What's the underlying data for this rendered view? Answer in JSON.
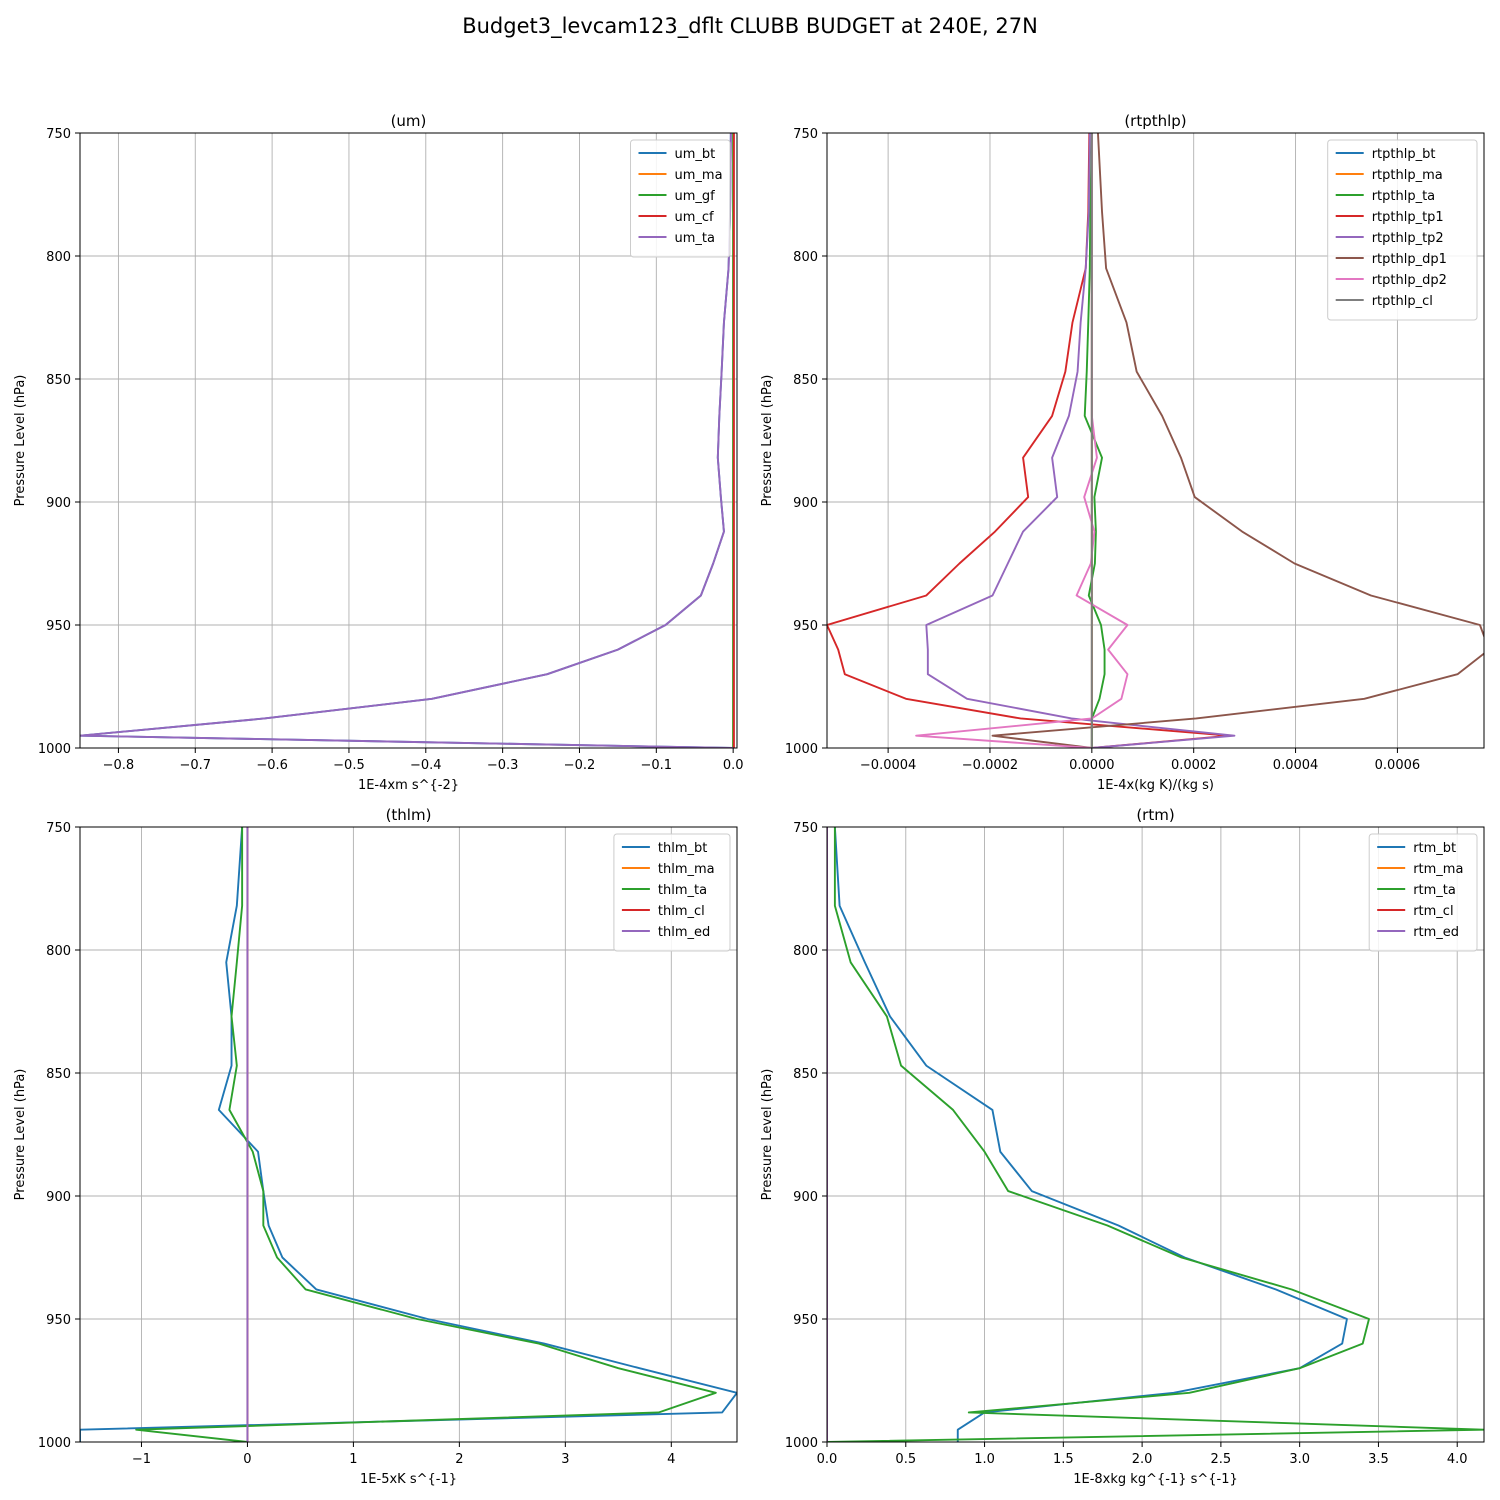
{
  "figure": {
    "title": "Budget3_levcam123_dflt CLUBB BUDGET at 240E, 27N"
  },
  "chart_data": [
    {
      "type": "line",
      "title": "(um)",
      "xlabel": "1E-4xm s^{-2}",
      "ylabel": "Pressure Level (hPa)",
      "xlim": [
        -0.85,
        0.005
      ],
      "ylim": [
        1000,
        750
      ],
      "y_inverted": true,
      "grid": true,
      "legend": "top-right",
      "xticks": [
        -0.8,
        -0.7,
        -0.6,
        -0.5,
        -0.4,
        -0.3,
        -0.2,
        -0.1,
        0.0
      ],
      "xtick_labels": [
        "−0.8",
        "−0.7",
        "−0.6",
        "−0.5",
        "−0.4",
        "−0.3",
        "−0.2",
        "−0.1",
        "0.0"
      ],
      "yticks": [
        750,
        800,
        850,
        900,
        950,
        1000
      ],
      "ytick_labels": [
        "750",
        "800",
        "850",
        "900",
        "950",
        "1000"
      ],
      "levels": [
        750,
        782,
        805,
        827,
        847,
        865,
        882,
        898,
        912,
        925,
        938,
        950,
        960,
        970,
        980,
        988,
        995,
        1000
      ],
      "series": [
        {
          "name": "um_bt",
          "color": "#1f77b4",
          "values": [
            -0.003,
            -0.004,
            -0.006,
            -0.012,
            -0.015,
            -0.018,
            -0.02,
            -0.016,
            -0.012,
            -0.026,
            -0.042,
            -0.088,
            -0.15,
            -0.242,
            -0.392,
            -0.61,
            -0.85,
            0.0
          ]
        },
        {
          "name": "um_ma",
          "color": "#ff7f0e",
          "values": [
            0,
            0,
            0,
            0,
            0,
            0,
            0,
            0,
            0,
            0,
            0,
            0,
            0,
            0,
            0,
            0,
            0,
            0
          ]
        },
        {
          "name": "um_gf",
          "color": "#2ca02c",
          "values": [
            0,
            0,
            0,
            0,
            0,
            0,
            0,
            0,
            0,
            0,
            0,
            0,
            0,
            0,
            0,
            0,
            0,
            0
          ]
        },
        {
          "name": "um_cf",
          "color": "#d62728",
          "values": [
            0.001,
            0.001,
            0.001,
            0.001,
            0.001,
            0.001,
            0.001,
            0.001,
            0.001,
            0.001,
            0.001,
            0.001,
            0.001,
            0.001,
            0.001,
            0.001,
            0.001,
            0.001
          ]
        },
        {
          "name": "um_ta",
          "color": "#9467bd",
          "values": [
            -0.003,
            -0.004,
            -0.006,
            -0.012,
            -0.015,
            -0.018,
            -0.02,
            -0.016,
            -0.012,
            -0.026,
            -0.042,
            -0.088,
            -0.15,
            -0.242,
            -0.392,
            -0.61,
            -0.85,
            0.0
          ]
        }
      ]
    },
    {
      "type": "line",
      "title": "(rtpthlp)",
      "xlabel": "1E-4x(kg K)/(kg s)",
      "ylabel": "Pressure Level (hPa)",
      "xlim": [
        -0.00052,
        0.00077
      ],
      "ylim": [
        1000,
        750
      ],
      "y_inverted": true,
      "grid": true,
      "legend": "top-right",
      "xticks": [
        -0.0004,
        -0.0002,
        0.0,
        0.0002,
        0.0004,
        0.0006
      ],
      "xtick_labels": [
        "−0.0004",
        "−0.0002",
        "0.0000",
        "0.0002",
        "0.0004",
        "0.0006"
      ],
      "yticks": [
        750,
        800,
        850,
        900,
        950,
        1000
      ],
      "ytick_labels": [
        "750",
        "800",
        "850",
        "900",
        "950",
        "1000"
      ],
      "levels": [
        750,
        782,
        805,
        827,
        847,
        865,
        882,
        898,
        912,
        925,
        938,
        950,
        960,
        970,
        980,
        988,
        995,
        1000
      ],
      "series": [
        {
          "name": "rtpthlp_bt",
          "color": "#1f77b4",
          "values": [
            0,
            0,
            0,
            0,
            0,
            0,
            0,
            0,
            0,
            0,
            0,
            0,
            0,
            0,
            0,
            0,
            0,
            0
          ]
        },
        {
          "name": "rtpthlp_ma",
          "color": "#ff7f0e",
          "values": [
            0,
            0,
            0,
            0,
            0,
            0,
            0,
            0,
            0,
            0,
            0,
            0,
            0,
            0,
            0,
            0,
            0,
            0
          ]
        },
        {
          "name": "rtpthlp_ta",
          "color": "#2ca02c",
          "values": [
            0.0,
            -3e-06,
            -4e-06,
            -7e-06,
            -1e-05,
            -1.4e-05,
            2e-05,
            5e-06,
            8e-06,
            6e-06,
            -6e-06,
            1.8e-05,
            2.5e-05,
            2.5e-05,
            1.5e-05,
            0.0,
            0.0,
            0.0
          ]
        },
        {
          "name": "rtpthlp_tp1",
          "color": "#d62728",
          "values": [
            -5e-06,
            -7e-06,
            -1.2e-05,
            -3.8e-05,
            -5.2e-05,
            -7.8e-05,
            -0.000135,
            -0.000125,
            -0.00019,
            -0.00026,
            -0.000325,
            -0.00052,
            -0.000498,
            -0.000485,
            -0.000365,
            -0.00014,
            0.00027,
            0.0
          ]
        },
        {
          "name": "rtpthlp_tp2",
          "color": "#9467bd",
          "values": [
            -4e-06,
            -6e-06,
            -1.2e-05,
            -2.2e-05,
            -2.8e-05,
            -4.5e-05,
            -7.8e-05,
            -6.8e-05,
            -0.000135,
            -0.000165,
            -0.000195,
            -0.000325,
            -0.000322,
            -0.000322,
            -0.000245,
            -4e-05,
            0.00028,
            0.0
          ]
        },
        {
          "name": "rtpthlp_dp1",
          "color": "#8c564b",
          "values": [
            1.2e-05,
            2e-05,
            2.8e-05,
            6.8e-05,
            8.8e-05,
            0.000138,
            0.000175,
            0.000202,
            0.000295,
            0.000398,
            0.000548,
            0.000762,
            0.00078,
            0.000718,
            0.000535,
            0.000205,
            -0.000195,
            0.0
          ]
        },
        {
          "name": "rtpthlp_dp2",
          "color": "#e377c2",
          "values": [
            0.0,
            0.0,
            0.0,
            0.0,
            0.0,
            0.0,
            1e-05,
            -1.5e-05,
            5e-06,
            -2e-06,
            -3e-05,
            7e-05,
            3.2e-05,
            7e-05,
            5.8e-05,
            0.0,
            -0.000345,
            0.0
          ]
        },
        {
          "name": "rtpthlp_cl",
          "color": "#7f7f7f",
          "values": [
            0,
            0,
            0,
            0,
            0,
            0,
            0,
            0,
            0,
            0,
            0,
            0,
            0,
            0,
            0,
            0,
            0,
            0
          ]
        }
      ]
    },
    {
      "type": "line",
      "title": "(thlm)",
      "xlabel": "1E-5xK s^{-1}",
      "ylabel": "Pressure Level (hPa)",
      "xlim": [
        -1.58,
        4.62
      ],
      "ylim": [
        1000,
        750
      ],
      "y_inverted": true,
      "grid": true,
      "legend": "top-right",
      "xticks": [
        -1,
        0,
        1,
        2,
        3,
        4
      ],
      "xtick_labels": [
        "−1",
        "0",
        "1",
        "2",
        "3",
        "4"
      ],
      "yticks": [
        750,
        800,
        850,
        900,
        950,
        1000
      ],
      "ytick_labels": [
        "750",
        "800",
        "850",
        "900",
        "950",
        "1000"
      ],
      "levels": [
        750,
        782,
        805,
        827,
        847,
        865,
        882,
        898,
        912,
        925,
        938,
        950,
        960,
        970,
        980,
        988,
        995,
        1000
      ],
      "series": [
        {
          "name": "thlm_bt",
          "color": "#1f77b4",
          "values": [
            -0.05,
            -0.1,
            -0.2,
            -0.15,
            -0.15,
            -0.27,
            0.1,
            0.15,
            0.2,
            0.33,
            0.65,
            1.7,
            2.8,
            3.7,
            4.62,
            4.48,
            -1.58,
            -1.58
          ]
        },
        {
          "name": "thlm_ma",
          "color": "#ff7f0e",
          "values": [
            0,
            0,
            0,
            0,
            0,
            0,
            0,
            0,
            0,
            0,
            0,
            0,
            0,
            0,
            0,
            0,
            0,
            0
          ]
        },
        {
          "name": "thlm_ta",
          "color": "#2ca02c",
          "values": [
            -0.05,
            -0.05,
            -0.1,
            -0.15,
            -0.1,
            -0.17,
            0.05,
            0.15,
            0.15,
            0.28,
            0.55,
            1.6,
            2.75,
            3.5,
            4.42,
            3.88,
            -1.05,
            0.0
          ]
        },
        {
          "name": "thlm_cl",
          "color": "#d62728",
          "values": [
            0,
            0,
            0,
            0,
            0,
            0,
            0,
            0,
            0,
            0,
            0,
            0,
            0,
            0,
            0,
            0,
            0,
            0
          ]
        },
        {
          "name": "thlm_ed",
          "color": "#9467bd",
          "values": [
            0,
            0,
            0,
            0,
            0,
            0,
            0,
            0,
            0,
            0,
            0,
            0,
            0,
            0,
            0,
            0,
            0,
            0
          ]
        }
      ]
    },
    {
      "type": "line",
      "title": "(rtm)",
      "xlabel": "1E-8xkg kg^{-1} s^{-1}",
      "ylabel": "Pressure Level (hPa)",
      "xlim": [
        0.0,
        4.17
      ],
      "ylim": [
        1000,
        750
      ],
      "y_inverted": true,
      "grid": true,
      "legend": "top-right",
      "xticks": [
        0.0,
        0.5,
        1.0,
        1.5,
        2.0,
        2.5,
        3.0,
        3.5,
        4.0
      ],
      "xtick_labels": [
        "0.0",
        "0.5",
        "1.0",
        "1.5",
        "2.0",
        "2.5",
        "3.0",
        "3.5",
        "4.0"
      ],
      "yticks": [
        750,
        800,
        850,
        900,
        950,
        1000
      ],
      "ytick_labels": [
        "750",
        "800",
        "850",
        "900",
        "950",
        "1000"
      ],
      "levels": [
        750,
        782,
        805,
        827,
        847,
        865,
        882,
        898,
        912,
        925,
        938,
        950,
        960,
        970,
        980,
        988,
        995,
        1000
      ],
      "series": [
        {
          "name": "rtm_bt",
          "color": "#1f77b4",
          "values": [
            0.05,
            0.08,
            0.24,
            0.4,
            0.63,
            1.05,
            1.1,
            1.3,
            1.85,
            2.27,
            2.85,
            3.3,
            3.27,
            3.0,
            2.2,
            1.0,
            0.83,
            0.83
          ]
        },
        {
          "name": "rtm_ma",
          "color": "#ff7f0e",
          "values": [
            0,
            0,
            0,
            0,
            0,
            0,
            0,
            0,
            0,
            0,
            0,
            0,
            0,
            0,
            0,
            0,
            0,
            0
          ]
        },
        {
          "name": "rtm_ta",
          "color": "#2ca02c",
          "values": [
            0.05,
            0.05,
            0.15,
            0.38,
            0.47,
            0.8,
            1.0,
            1.15,
            1.78,
            2.25,
            2.95,
            3.44,
            3.4,
            3.0,
            2.3,
            0.9,
            4.17,
            0.0
          ]
        },
        {
          "name": "rtm_cl",
          "color": "#d62728",
          "values": [
            0,
            0,
            0,
            0,
            0,
            0,
            0,
            0,
            0,
            0,
            0,
            0,
            0,
            0,
            0,
            0,
            0,
            0
          ]
        },
        {
          "name": "rtm_ed",
          "color": "#9467bd",
          "values": [
            0,
            0,
            0,
            0,
            0,
            0,
            0,
            0,
            0,
            0,
            0,
            0,
            0,
            0,
            0,
            0,
            0,
            0
          ]
        }
      ]
    }
  ]
}
